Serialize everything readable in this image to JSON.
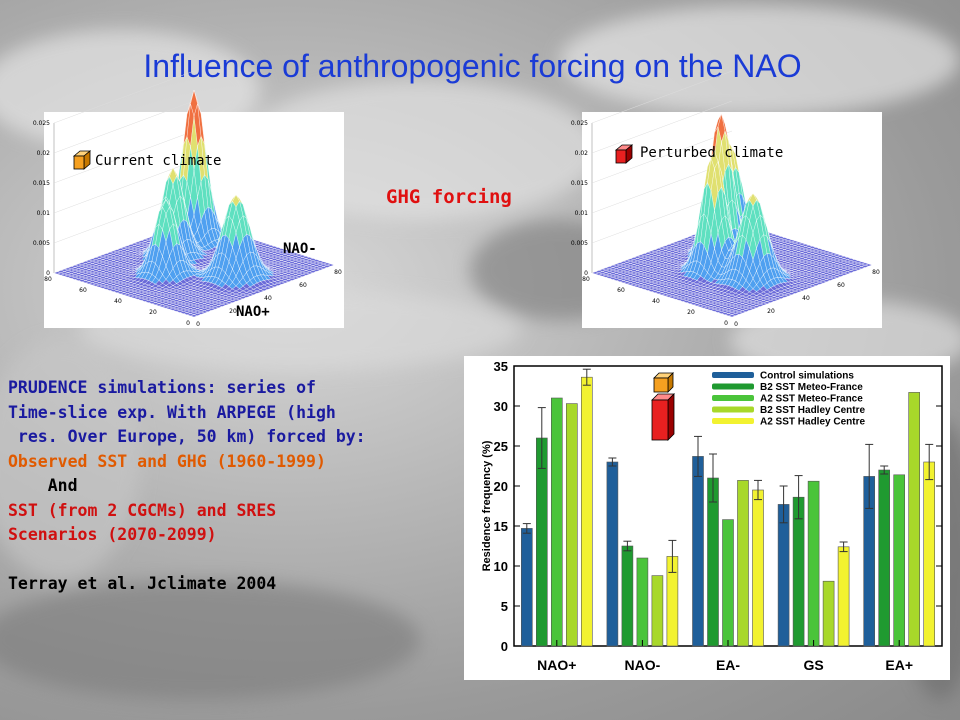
{
  "title": "Influence of anthropogenic forcing on the NAO",
  "left_panel": {
    "legend": "Current climate",
    "legend_color": "#f5a020",
    "z_ticks": [
      "0.025",
      "0.02",
      "0.015",
      "0.01",
      "0.005",
      "0"
    ],
    "x_ticks": [
      "0",
      "20",
      "40",
      "60",
      "80"
    ],
    "y_ticks": [
      "0",
      "20",
      "40",
      "60",
      "80"
    ],
    "label_nao_minus": "NAO-",
    "label_nao_plus": "NAO+"
  },
  "right_panel": {
    "legend": "Perturbed climate",
    "legend_color": "#e82020",
    "z_ticks": [
      "0.025",
      "0.02",
      "0.015",
      "0.01",
      "0.005",
      "0"
    ],
    "x_ticks": [
      "0",
      "20",
      "40",
      "60",
      "80"
    ],
    "y_ticks": [
      "0",
      "20",
      "40",
      "60",
      "80"
    ]
  },
  "middle_label": "GHG forcing",
  "text_lines": [
    {
      "text": "PRUDENCE simulations: series of",
      "style": "blk"
    },
    {
      "text": "Time-slice exp. With ARPEGE (high",
      "style": "blk"
    },
    {
      "text": " res. Over Europe, 50 km) forced by:",
      "style": "blk"
    },
    {
      "text": "Observed SST and GHG (1960-1999)",
      "style": "org"
    },
    {
      "text": "    And",
      "style": "dark"
    },
    {
      "text": "SST (from 2 CGCMs) and SRES",
      "style": "red"
    },
    {
      "text": "Scenarios (2070-2099)",
      "style": "red"
    },
    {
      "text": " ",
      "style": "dark"
    },
    {
      "text": "Terray et al. Jclimate 2004",
      "style": "dark"
    }
  ],
  "chart_data": {
    "type": "bar",
    "categories": [
      "NAO+",
      "NAO-",
      "EA-",
      "GS",
      "EA+"
    ],
    "ylabel": "Residence frequency (%)",
    "ylim": [
      0,
      35
    ],
    "yticks": [
      0,
      5,
      10,
      15,
      20,
      25,
      30,
      35
    ],
    "legend_position": "top-right",
    "series": [
      {
        "name": "Control simulations",
        "color": "#1f5f9a",
        "values": [
          14.7,
          23.0,
          23.7,
          17.7,
          21.2
        ],
        "errors": [
          0.6,
          0.5,
          2.5,
          2.3,
          4.0
        ]
      },
      {
        "name": "B2 SST Meteo-France",
        "color": "#1f9a30",
        "values": [
          26.0,
          12.5,
          21.0,
          18.6,
          22.0
        ],
        "errors": [
          3.8,
          0.6,
          3.0,
          2.7,
          0.5
        ]
      },
      {
        "name": "A2 SST Meteo-France",
        "color": "#4ac43a",
        "values": [
          31.0,
          11.0,
          15.8,
          20.6,
          21.4
        ],
        "errors": [
          0,
          0,
          0,
          0,
          0
        ]
      },
      {
        "name": "B2 SST Hadley Centre",
        "color": "#a8d82a",
        "values": [
          30.3,
          8.8,
          20.7,
          8.1,
          31.7
        ],
        "errors": [
          0,
          0,
          0,
          0,
          0
        ]
      },
      {
        "name": "A2 SST Hadley Centre",
        "color": "#f2f230",
        "values": [
          33.6,
          11.2,
          19.5,
          12.4,
          23.0
        ],
        "errors": [
          1.0,
          2.0,
          1.2,
          0.6,
          2.2
        ]
      }
    ]
  }
}
